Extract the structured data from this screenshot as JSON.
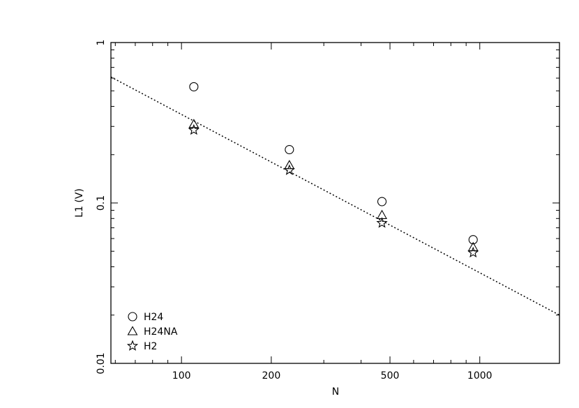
{
  "chart_data": {
    "type": "scatter",
    "xlabel": "N",
    "ylabel": "L1  (V)",
    "xscale": "log",
    "yscale": "log",
    "xlim": [
      58,
      1850
    ],
    "ylim": [
      0.01,
      1
    ],
    "x_ticks": [
      100,
      200,
      500,
      1000
    ],
    "x_tick_labels": [
      "100",
      "200",
      "500",
      "1000"
    ],
    "y_ticks": [
      0.01,
      0.1,
      1
    ],
    "y_tick_labels": [
      "0.01",
      "0.1",
      "1"
    ],
    "grid": false,
    "legend_position": "bottom-left",
    "series": [
      {
        "name": "H24",
        "marker": "circle",
        "x": [
          110,
          230,
          470,
          950
        ],
        "y": [
          0.53,
          0.215,
          0.102,
          0.059
        ]
      },
      {
        "name": "H24NA",
        "marker": "triangle",
        "x": [
          110,
          230,
          470,
          950
        ],
        "y": [
          0.31,
          0.172,
          0.084,
          0.053
        ]
      },
      {
        "name": "H2",
        "marker": "star",
        "x": [
          110,
          230,
          470,
          950
        ],
        "y": [
          0.285,
          0.16,
          0.075,
          0.049
        ]
      }
    ],
    "fit_line": {
      "style": "dotted",
      "x": [
        58,
        1850
      ],
      "y": [
        0.61,
        0.02
      ]
    }
  }
}
